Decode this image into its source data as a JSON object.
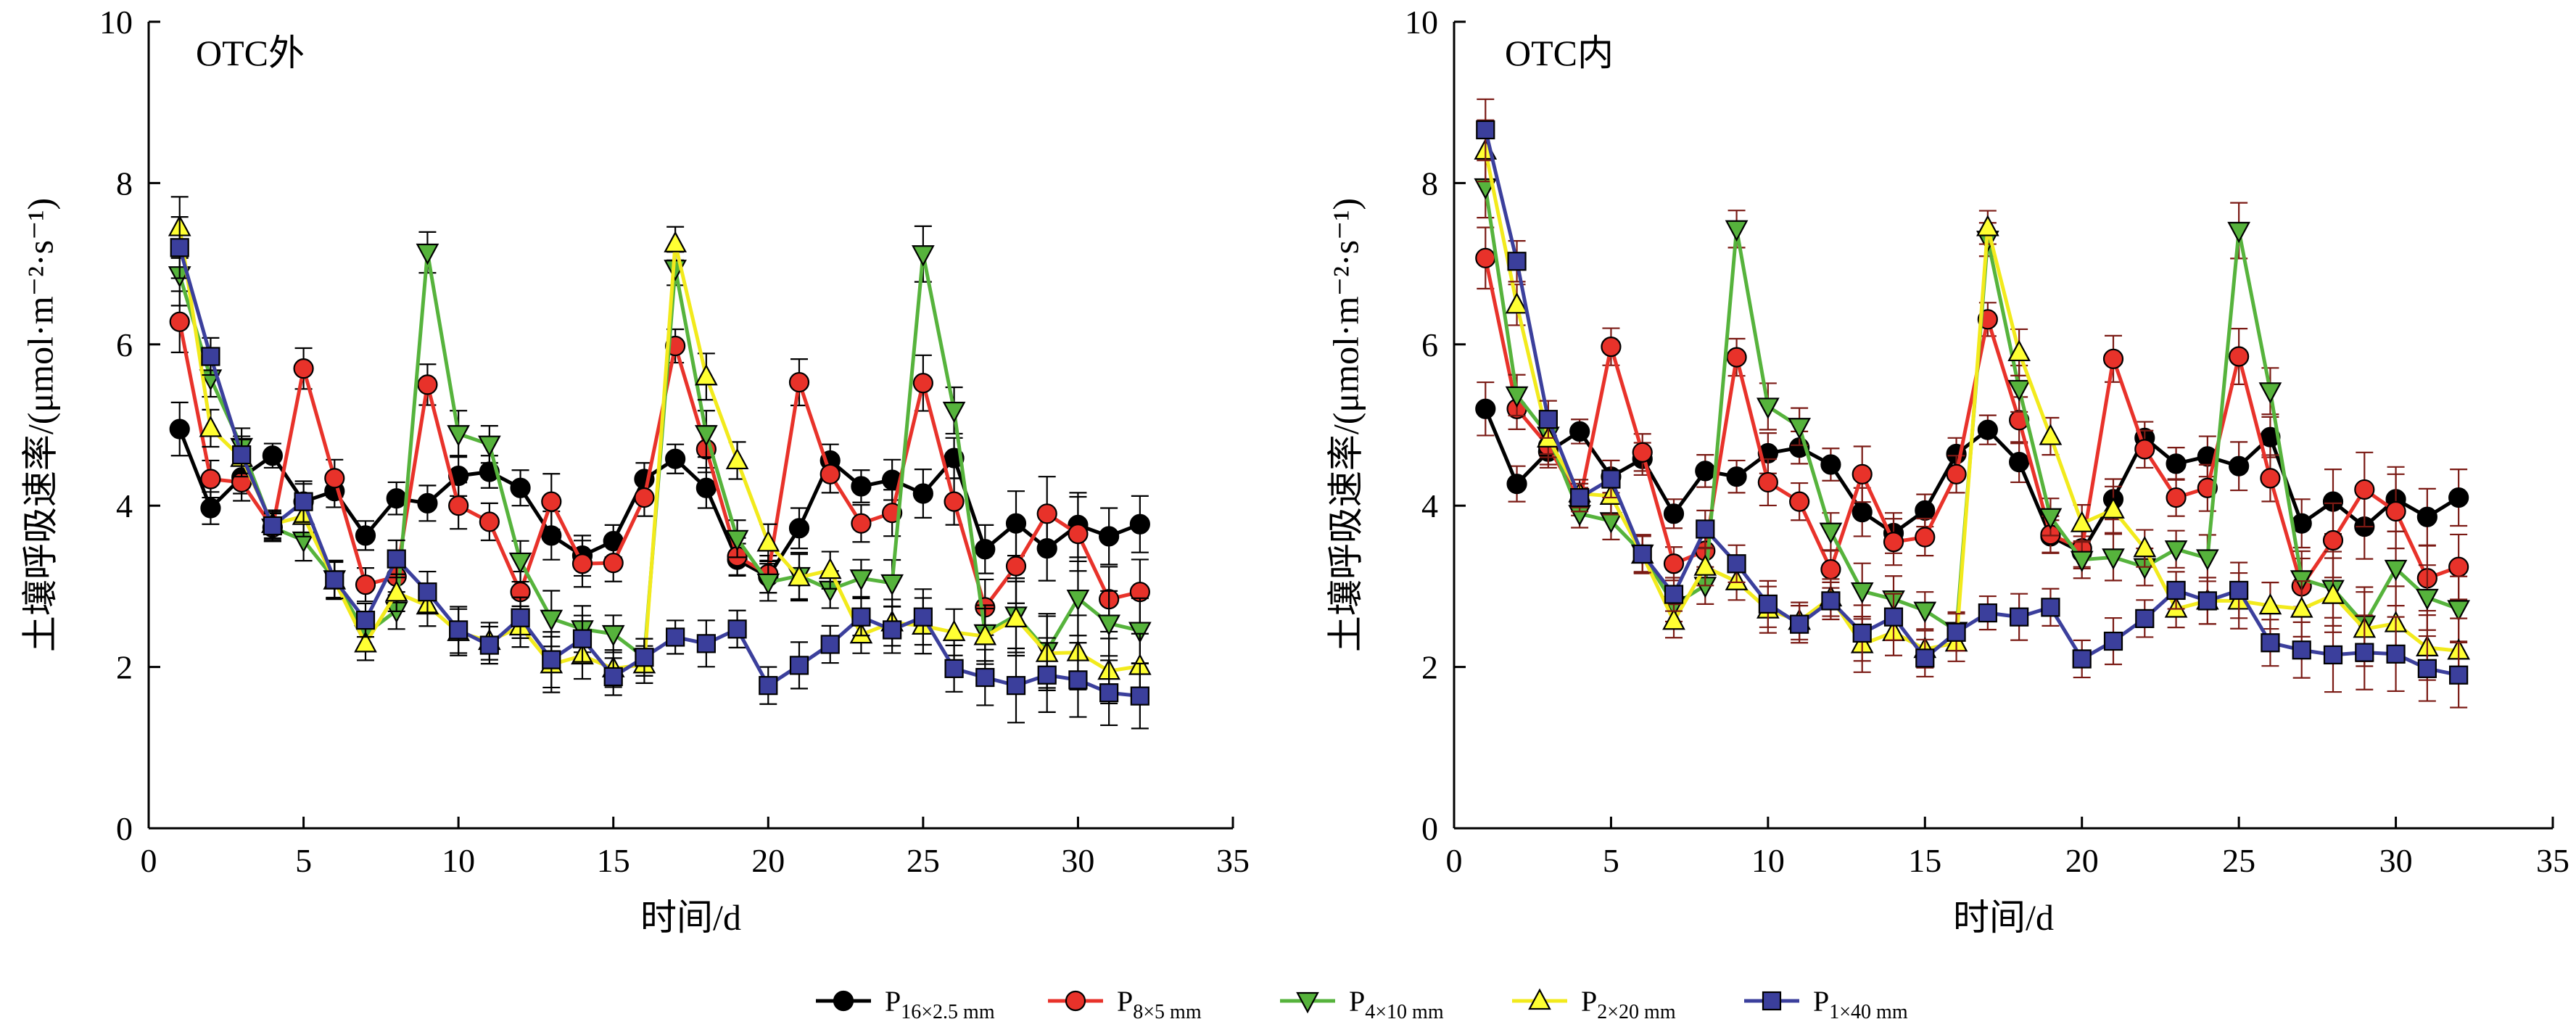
{
  "chart_data": [
    {
      "type": "line",
      "title": "OTC外",
      "xlabel": "时间/d",
      "ylabel": "土壤呼吸速率/(μmol·m⁻²·s⁻¹)",
      "xlim": [
        0,
        35
      ],
      "ylim": [
        0,
        10
      ],
      "xticks": [
        0,
        5,
        10,
        15,
        20,
        25,
        30,
        35
      ],
      "yticks": [
        0,
        2,
        4,
        6,
        8,
        10
      ],
      "x": [
        1,
        2,
        3,
        4,
        5,
        6,
        7,
        8,
        9,
        10,
        11,
        12,
        13,
        14,
        15,
        16,
        17,
        18,
        19,
        20,
        21,
        22,
        23,
        24,
        25,
        26,
        27,
        28,
        29,
        30,
        31,
        32
      ],
      "grid": false,
      "series": [
        {
          "key": "p16",
          "values": [
            4.95,
            3.97,
            4.35,
            4.62,
            4.05,
            4.18,
            3.63,
            4.09,
            4.03,
            4.37,
            4.42,
            4.22,
            3.63,
            3.38,
            3.56,
            4.33,
            4.58,
            4.22,
            3.33,
            3.12,
            3.72,
            4.56,
            4.24,
            4.32,
            4.15,
            4.59,
            3.46,
            3.78,
            3.47,
            3.76,
            3.62,
            3.77
          ],
          "err": [
            0.33,
            0.2,
            0.2,
            0.15,
            0.22,
            0.2,
            0.18,
            0.2,
            0.22,
            0.25,
            0.2,
            0.22,
            0.3,
            0.25,
            0.2,
            0.2,
            0.18,
            0.25,
            0.2,
            0.2,
            0.25,
            0.2,
            0.2,
            0.25,
            0.3,
            0.25,
            0.3,
            0.4,
            0.4,
            0.4,
            0.35,
            0.35
          ]
        },
        {
          "key": "p8",
          "values": [
            6.28,
            4.33,
            4.29,
            3.73,
            5.7,
            4.34,
            3.02,
            3.12,
            5.5,
            4.0,
            3.8,
            2.93,
            4.05,
            3.28,
            3.29,
            4.1,
            5.98,
            4.7,
            3.37,
            3.15,
            5.53,
            4.39,
            3.78,
            3.91,
            5.52,
            4.05,
            2.74,
            3.25,
            3.9,
            3.65,
            2.84,
            2.93
          ]
        },
        {
          "key": "p4",
          "values": [
            6.86,
            5.58,
            4.73,
            3.73,
            3.57,
            3.09,
            2.41,
            2.7,
            7.14,
            4.89,
            4.76,
            3.31,
            2.6,
            2.47,
            2.41,
            2.12,
            6.94,
            4.89,
            3.59,
            3.05,
            3.13,
            2.96,
            3.1,
            3.04,
            7.12,
            5.18,
            2.42,
            2.64,
            2.2,
            2.85,
            2.54,
            2.45
          ]
        },
        {
          "key": "p2",
          "values": [
            7.45,
            4.96,
            4.59,
            3.77,
            3.87,
            3.07,
            2.29,
            2.92,
            2.76,
            2.43,
            2.32,
            2.5,
            2.03,
            2.14,
            1.98,
            2.03,
            7.25,
            5.6,
            4.56,
            3.54,
            3.11,
            3.2,
            2.4,
            2.55,
            2.51,
            2.43,
            2.38,
            2.6,
            2.17,
            2.18,
            1.95,
            2.01
          ]
        },
        {
          "key": "p1",
          "values": [
            7.2,
            5.85,
            4.63,
            3.75,
            4.05,
            3.08,
            2.58,
            3.34,
            2.93,
            2.46,
            2.27,
            2.61,
            2.09,
            2.35,
            1.88,
            2.12,
            2.37,
            2.29,
            2.47,
            1.77,
            2.02,
            2.28,
            2.62,
            2.46,
            2.62,
            1.98,
            1.87,
            1.77,
            1.9,
            1.84,
            1.68,
            1.64
          ]
        }
      ]
    },
    {
      "type": "line",
      "title": "OTC内",
      "xlabel": "时间/d",
      "ylabel": "土壤呼吸速率/(μmol·m⁻²·s⁻¹)",
      "xlim": [
        0,
        35
      ],
      "ylim": [
        0,
        10
      ],
      "xticks": [
        0,
        5,
        10,
        15,
        20,
        25,
        30,
        35
      ],
      "yticks": [
        0,
        2,
        4,
        6,
        8,
        10
      ],
      "x": [
        1,
        2,
        3,
        4,
        5,
        6,
        7,
        8,
        9,
        10,
        11,
        12,
        13,
        14,
        15,
        16,
        17,
        18,
        19,
        20,
        21,
        22,
        23,
        24,
        25,
        26,
        27,
        28,
        29,
        30,
        31,
        32
      ],
      "grid": false,
      "series": [
        {
          "key": "p16",
          "values": [
            5.2,
            4.27,
            4.67,
            4.92,
            4.36,
            4.58,
            3.9,
            4.43,
            4.36,
            4.65,
            4.72,
            4.51,
            3.92,
            3.66,
            3.94,
            4.64,
            4.94,
            4.54,
            3.62,
            3.42,
            4.08,
            4.84,
            4.52,
            4.61,
            4.49,
            4.85,
            3.78,
            4.05,
            3.74,
            4.08,
            3.86,
            4.1
          ],
          "err": [
            0.33,
            0.22,
            0.2,
            0.15,
            0.2,
            0.2,
            0.18,
            0.2,
            0.2,
            0.25,
            0.2,
            0.2,
            0.3,
            0.25,
            0.2,
            0.2,
            0.18,
            0.25,
            0.2,
            0.2,
            0.25,
            0.2,
            0.2,
            0.25,
            0.3,
            0.25,
            0.3,
            0.4,
            0.4,
            0.4,
            0.35,
            0.35
          ]
        },
        {
          "key": "p8",
          "values": [
            7.07,
            5.2,
            4.74,
            4.05,
            5.97,
            4.66,
            3.28,
            3.44,
            5.84,
            4.29,
            4.05,
            3.21,
            4.39,
            3.55,
            3.61,
            4.39,
            6.31,
            5.06,
            3.64,
            3.47,
            5.82,
            4.7,
            4.1,
            4.22,
            5.85,
            4.34,
            3.0,
            3.57,
            4.2,
            3.93,
            3.1,
            3.24
          ]
        },
        {
          "key": "p4",
          "values": [
            7.95,
            5.37,
            4.87,
            3.9,
            3.81,
            3.41,
            2.77,
            3.01,
            7.43,
            5.23,
            4.98,
            3.68,
            2.94,
            2.84,
            2.7,
            2.45,
            7.3,
            5.45,
            3.86,
            3.33,
            3.36,
            3.24,
            3.46,
            3.35,
            7.41,
            5.42,
            3.09,
            2.97,
            2.53,
            3.22,
            2.86,
            2.72
          ]
        },
        {
          "key": "p2",
          "values": [
            8.4,
            6.49,
            4.83,
            4.15,
            4.12,
            3.39,
            2.57,
            3.24,
            3.06,
            2.71,
            2.57,
            2.86,
            2.28,
            2.43,
            2.22,
            2.3,
            7.45,
            5.9,
            4.86,
            3.78,
            3.95,
            3.47,
            2.72,
            2.82,
            2.82,
            2.76,
            2.72,
            2.89,
            2.47,
            2.54,
            2.24,
            2.2
          ]
        },
        {
          "key": "p1",
          "values": [
            8.66,
            7.03,
            5.07,
            4.1,
            4.33,
            3.4,
            2.9,
            3.71,
            3.28,
            2.78,
            2.53,
            2.82,
            2.42,
            2.62,
            2.11,
            2.43,
            2.67,
            2.62,
            2.74,
            2.1,
            2.32,
            2.6,
            2.95,
            2.82,
            2.95,
            2.3,
            2.21,
            2.15,
            2.18,
            2.16,
            1.98,
            1.9
          ]
        }
      ]
    }
  ],
  "legend": {
    "placement": "bottom",
    "items": [
      {
        "key": "p16",
        "base": "P",
        "sub": "16×2.5 mm",
        "color": "#000000",
        "marker": "circle"
      },
      {
        "key": "p8",
        "base": "P",
        "sub": "8×5 mm",
        "color": "#e8322a",
        "marker": "circle"
      },
      {
        "key": "p4",
        "base": "P",
        "sub": "4×10 mm",
        "color": "#56b33c",
        "marker": "triangle-down"
      },
      {
        "key": "p2",
        "base": "P",
        "sub": "2×20 mm",
        "color": "#ffff33",
        "marker": "triangle-up"
      },
      {
        "key": "p1",
        "base": "P",
        "sub": "1×40 mm",
        "color": "#3b3f9c",
        "marker": "square"
      }
    ]
  },
  "styles": {
    "left_errorbar_color": "#000000",
    "right_errorbar_color": "#7a1a14"
  }
}
